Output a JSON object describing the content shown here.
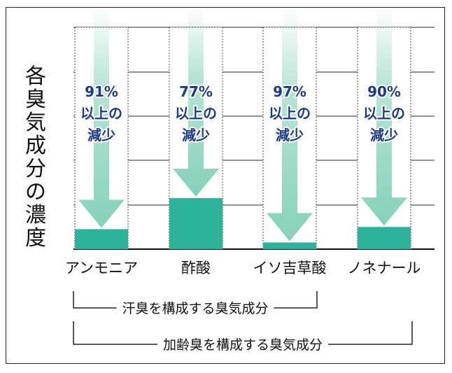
{
  "chart_data": {
    "type": "bar",
    "ylabel": "各臭気成分の濃度",
    "categories": [
      "アンモニア",
      "酢酸",
      "イソ吉草酸",
      "ノネナール"
    ],
    "before": [
      100,
      100,
      100,
      100
    ],
    "after": [
      9,
      23,
      3,
      10
    ],
    "annotations": [
      [
        "91%",
        "以上の",
        "減少"
      ],
      [
        "77%",
        "以上の",
        "減少"
      ],
      [
        "97%",
        "以上の",
        "減少"
      ],
      [
        "90%",
        "以上の",
        "減少"
      ]
    ],
    "ylim": [
      0,
      100
    ],
    "grid": true,
    "colors": {
      "bar": "#2db39a",
      "arrow": "#7fcfb6",
      "annotation": "#1b3a8c"
    },
    "brackets": [
      {
        "label": "汗臭を構成する臭気成分",
        "span": [
          0,
          2
        ]
      },
      {
        "label": "加齢臭を構成する臭気成分",
        "span": [
          0,
          3
        ]
      }
    ]
  }
}
